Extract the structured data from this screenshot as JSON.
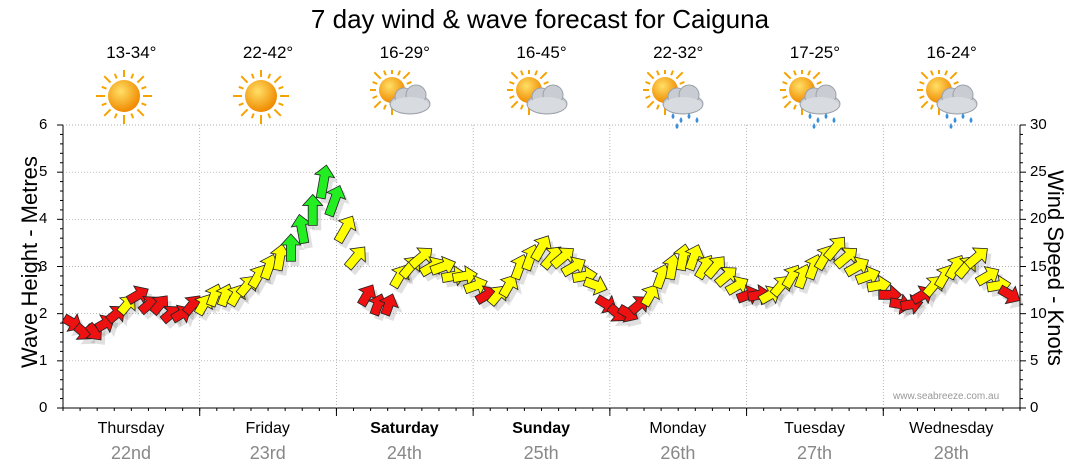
{
  "title": "7 day wind & wave forecast for Caiguna",
  "days": [
    {
      "name": "Thursday",
      "date": "22nd",
      "temp": "13-34°",
      "icon": "sunny-icon",
      "bold": false
    },
    {
      "name": "Friday",
      "date": "23rd",
      "temp": "22-42°",
      "icon": "sunny-icon",
      "bold": false
    },
    {
      "name": "Saturday",
      "date": "24th",
      "temp": "16-29°",
      "icon": "partly-cloudy-icon",
      "bold": true
    },
    {
      "name": "Sunday",
      "date": "25th",
      "temp": "16-45°",
      "icon": "partly-cloudy-icon",
      "bold": true
    },
    {
      "name": "Monday",
      "date": "26th",
      "temp": "22-32°",
      "icon": "showers-icon",
      "bold": false
    },
    {
      "name": "Tuesday",
      "date": "27th",
      "temp": "17-25°",
      "icon": "showers-icon",
      "bold": false
    },
    {
      "name": "Wednesday",
      "date": "28th",
      "temp": "16-24°",
      "icon": "showers-icon",
      "bold": false
    }
  ],
  "credit": "www.seabreeze.com.au",
  "colors": {
    "red": "#ee1111",
    "yellow": "#ffff00",
    "green": "#22ee22",
    "grid": "#999999"
  },
  "chart_data": {
    "type": "scatter",
    "title": "7 day wind & wave forecast for Caiguna",
    "ylabel_left": "Wave Height - Metres",
    "ylabel_right": "Wind Speed - Knots",
    "ylim_left": [
      0,
      6
    ],
    "ylim_right": [
      0,
      30
    ],
    "yticks_left": [
      "0",
      "1",
      "2",
      "3",
      "4",
      "5",
      "6"
    ],
    "yticks_right": [
      "0",
      "5",
      "10",
      "15",
      "20",
      "25",
      "30"
    ],
    "x_unit": "days",
    "wind_knots": [
      9,
      8,
      8,
      9,
      10,
      11,
      12,
      11,
      11,
      10,
      10,
      11,
      11,
      12,
      12,
      12,
      13,
      14,
      15,
      16,
      17,
      19,
      21,
      24,
      22,
      19,
      16,
      12,
      11,
      11,
      14,
      15,
      16,
      15,
      15,
      14,
      14,
      13,
      12,
      12,
      13,
      15,
      16,
      17,
      16,
      16,
      15,
      14,
      13,
      11,
      10,
      10,
      11,
      12,
      14,
      15,
      16,
      16,
      15,
      15,
      14,
      13,
      12,
      12,
      12,
      13,
      14,
      14,
      15,
      16,
      17,
      16,
      15,
      14,
      13,
      12,
      11,
      11,
      12,
      13,
      14,
      15,
      15,
      16,
      14,
      13,
      12
    ],
    "wave_m": [
      1.8,
      1.7,
      1.7,
      1.8,
      1.9,
      2.0,
      2.0,
      2.1,
      2.1,
      2.0,
      2.0,
      2.1,
      2.2,
      2.3,
      2.5,
      2.7,
      2.9,
      3.1,
      3.3,
      3.6,
      4.0,
      4.4,
      4.8,
      5.0,
      4.5,
      3.8,
      3.2,
      2.6,
      2.3,
      2.2,
      2.6,
      2.8,
      3.0,
      2.9,
      2.8,
      2.7,
      2.6,
      2.5,
      2.4,
      2.3,
      2.4,
      2.6,
      2.8,
      3.0,
      3.1,
      3.1,
      3.0,
      2.9,
      2.7,
      2.4,
      2.2,
      2.1,
      2.2,
      2.4,
      2.6,
      2.8,
      3.0,
      3.0,
      2.9,
      2.8,
      2.7,
      2.6,
      2.5,
      2.4,
      2.3,
      2.4,
      2.5,
      2.6,
      2.7,
      2.8,
      2.9,
      2.9,
      2.8,
      2.7,
      2.6,
      2.5,
      2.4,
      2.3,
      2.3,
      2.4,
      2.5,
      2.6,
      2.6,
      2.6,
      2.5,
      2.4,
      2.2
    ],
    "wind_color": [
      "red",
      "red",
      "red",
      "red",
      "red",
      "yellow",
      "red",
      "red",
      "red",
      "red",
      "red",
      "red",
      "yellow",
      "yellow",
      "yellow",
      "yellow",
      "yellow",
      "yellow",
      "yellow",
      "yellow",
      "green",
      "green",
      "green",
      "green",
      "green",
      "yellow",
      "yellow",
      "red",
      "red",
      "red",
      "yellow",
      "yellow",
      "yellow",
      "yellow",
      "yellow",
      "yellow",
      "yellow",
      "yellow",
      "red",
      "yellow",
      "yellow",
      "yellow",
      "yellow",
      "yellow",
      "yellow",
      "yellow",
      "yellow",
      "yellow",
      "yellow",
      "red",
      "red",
      "red",
      "red",
      "yellow",
      "yellow",
      "yellow",
      "yellow",
      "yellow",
      "yellow",
      "yellow",
      "yellow",
      "yellow",
      "red",
      "red",
      "yellow",
      "yellow",
      "yellow",
      "yellow",
      "yellow",
      "yellow",
      "yellow",
      "yellow",
      "yellow",
      "yellow",
      "yellow",
      "red",
      "red",
      "red",
      "red",
      "yellow",
      "yellow",
      "yellow",
      "yellow",
      "yellow",
      "yellow",
      "yellow",
      "red"
    ],
    "wind_direction_deg": [
      300,
      310,
      320,
      240,
      230,
      220,
      240,
      230,
      220,
      230,
      240,
      220,
      210,
      200,
      200,
      210,
      220,
      210,
      200,
      190,
      180,
      170,
      180,
      190,
      200,
      210,
      220,
      210,
      200,
      200,
      210,
      220,
      230,
      240,
      250,
      260,
      260,
      250,
      240,
      220,
      210,
      200,
      200,
      210,
      220,
      230,
      240,
      260,
      290,
      300,
      310,
      300,
      230,
      210,
      200,
      190,
      190,
      200,
      210,
      220,
      230,
      240,
      250,
      260,
      240,
      220,
      210,
      200,
      200,
      210,
      220,
      230,
      240,
      250,
      260,
      270,
      280,
      260,
      240,
      220,
      210,
      210,
      220,
      230,
      240,
      260,
      300
    ]
  }
}
